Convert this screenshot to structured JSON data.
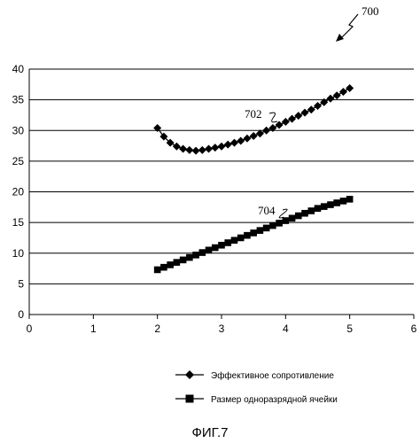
{
  "figure": {
    "ref_number": "700",
    "caption": "ФИГ.7"
  },
  "chart_data": {
    "type": "scatter",
    "xlim": [
      0,
      6
    ],
    "ylim": [
      0,
      40
    ],
    "x_ticks": [
      0,
      1,
      2,
      3,
      4,
      5,
      6
    ],
    "y_ticks": [
      0,
      5,
      10,
      15,
      20,
      25,
      30,
      35,
      40
    ],
    "grid": "horizontal",
    "legend_position": "bottom",
    "series": [
      {
        "name": "Эффективное сопротивление",
        "ref_label": "702",
        "marker": "diamond",
        "color": "#000000",
        "points": [
          [
            2.0,
            30.4
          ],
          [
            2.1,
            29.0
          ],
          [
            2.2,
            28.0
          ],
          [
            2.3,
            27.4
          ],
          [
            2.4,
            27.0
          ],
          [
            2.5,
            26.8
          ],
          [
            2.6,
            26.7
          ],
          [
            2.7,
            26.8
          ],
          [
            2.8,
            27.0
          ],
          [
            2.9,
            27.2
          ],
          [
            3.0,
            27.4
          ],
          [
            3.1,
            27.7
          ],
          [
            3.2,
            28.0
          ],
          [
            3.3,
            28.3
          ],
          [
            3.4,
            28.7
          ],
          [
            3.5,
            29.1
          ],
          [
            3.6,
            29.5
          ],
          [
            3.7,
            30.0
          ],
          [
            3.8,
            30.4
          ],
          [
            3.9,
            30.9
          ],
          [
            4.0,
            31.4
          ],
          [
            4.1,
            31.9
          ],
          [
            4.2,
            32.4
          ],
          [
            4.3,
            32.9
          ],
          [
            4.4,
            33.4
          ],
          [
            4.5,
            34.0
          ],
          [
            4.6,
            34.6
          ],
          [
            4.7,
            35.2
          ],
          [
            4.8,
            35.7
          ],
          [
            4.9,
            36.3
          ],
          [
            5.0,
            36.9
          ]
        ]
      },
      {
        "name": "Размер одноразрядной ячейки",
        "ref_label": "704",
        "marker": "square",
        "color": "#000000",
        "points": [
          [
            2.0,
            7.3
          ],
          [
            2.1,
            7.7
          ],
          [
            2.2,
            8.1
          ],
          [
            2.3,
            8.5
          ],
          [
            2.4,
            8.9
          ],
          [
            2.5,
            9.3
          ],
          [
            2.6,
            9.7
          ],
          [
            2.7,
            10.1
          ],
          [
            2.8,
            10.5
          ],
          [
            2.9,
            10.9
          ],
          [
            3.0,
            11.3
          ],
          [
            3.1,
            11.7
          ],
          [
            3.2,
            12.1
          ],
          [
            3.3,
            12.5
          ],
          [
            3.4,
            12.9
          ],
          [
            3.5,
            13.3
          ],
          [
            3.6,
            13.7
          ],
          [
            3.7,
            14.1
          ],
          [
            3.8,
            14.5
          ],
          [
            3.9,
            14.9
          ],
          [
            4.0,
            15.3
          ],
          [
            4.1,
            15.7
          ],
          [
            4.2,
            16.1
          ],
          [
            4.3,
            16.5
          ],
          [
            4.4,
            16.9
          ],
          [
            4.5,
            17.3
          ],
          [
            4.6,
            17.6
          ],
          [
            4.7,
            17.9
          ],
          [
            4.8,
            18.2
          ],
          [
            4.9,
            18.5
          ],
          [
            5.0,
            18.8
          ]
        ]
      }
    ]
  }
}
